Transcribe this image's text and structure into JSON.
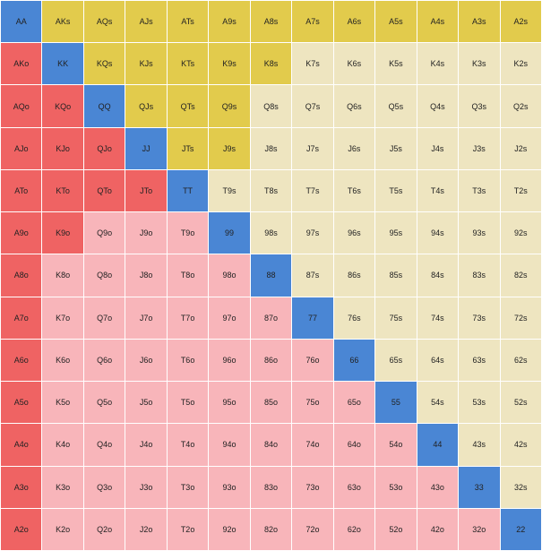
{
  "rows": [
    [
      "AA",
      "AKs",
      "AQs",
      "AJs",
      "ATs",
      "A9s",
      "A8s",
      "A7s",
      "A6s",
      "A5s",
      "A4s",
      "A3s",
      "A2s"
    ],
    [
      "AKo",
      "KK",
      "KQs",
      "KJs",
      "KTs",
      "K9s",
      "K8s",
      "K7s",
      "K6s",
      "K5s",
      "K4s",
      "K3s",
      "K2s"
    ],
    [
      "AQo",
      "KQo",
      "QQ",
      "QJs",
      "QTs",
      "Q9s",
      "Q8s",
      "Q7s",
      "Q6s",
      "Q5s",
      "Q4s",
      "Q3s",
      "Q2s"
    ],
    [
      "AJo",
      "KJo",
      "QJo",
      "JJ",
      "JTs",
      "J9s",
      "J8s",
      "J7s",
      "J6s",
      "J5s",
      "J4s",
      "J3s",
      "J2s"
    ],
    [
      "ATo",
      "KTo",
      "QTo",
      "JTo",
      "TT",
      "T9s",
      "T8s",
      "T7s",
      "T6s",
      "T5s",
      "T4s",
      "T3s",
      "T2s"
    ],
    [
      "A9o",
      "K9o",
      "Q9o",
      "J9o",
      "T9o",
      "99",
      "98s",
      "97s",
      "96s",
      "95s",
      "94s",
      "93s",
      "92s"
    ],
    [
      "A8o",
      "K8o",
      "Q8o",
      "J8o",
      "T8o",
      "98o",
      "88",
      "87s",
      "86s",
      "85s",
      "84s",
      "83s",
      "82s"
    ],
    [
      "A7o",
      "K7o",
      "Q7o",
      "J7o",
      "T7o",
      "97o",
      "87o",
      "77",
      "76s",
      "75s",
      "74s",
      "73s",
      "72s"
    ],
    [
      "A6o",
      "K6o",
      "Q6o",
      "J6o",
      "T6o",
      "96o",
      "86o",
      "76o",
      "66",
      "65s",
      "64s",
      "63s",
      "62s"
    ],
    [
      "A5o",
      "K5o",
      "Q5o",
      "J5o",
      "T5o",
      "95o",
      "85o",
      "75o",
      "65o",
      "55",
      "54s",
      "53s",
      "52s"
    ],
    [
      "A4o",
      "K4o",
      "Q4o",
      "J4o",
      "T4o",
      "94o",
      "84o",
      "74o",
      "64o",
      "54o",
      "44",
      "43s",
      "42s"
    ],
    [
      "A3o",
      "K3o",
      "Q3o",
      "J3o",
      "T3o",
      "93o",
      "83o",
      "73o",
      "63o",
      "53o",
      "43o",
      "33",
      "32s"
    ],
    [
      "A2o",
      "K2o",
      "Q2o",
      "J2o",
      "T2o",
      "92o",
      "82o",
      "72o",
      "62o",
      "52o",
      "42o",
      "32o",
      "22"
    ]
  ],
  "selected": [
    "AA",
    "KK",
    "QQ",
    "JJ",
    "TT",
    "99",
    "88",
    "77",
    "66",
    "55",
    "44",
    "33",
    "22",
    "AKs",
    "AQs",
    "AJs",
    "ATs",
    "A9s",
    "A8s",
    "A7s",
    "A6s",
    "A5s",
    "A4s",
    "A3s",
    "A2s",
    "KQs",
    "KJs",
    "KTs",
    "K9s",
    "K8s",
    "QJs",
    "QTs",
    "Q9s",
    "JTs",
    "J9s",
    "AKo",
    "AQo",
    "AJo",
    "ATo",
    "A9o",
    "A8o",
    "A7o",
    "A6o",
    "A5o",
    "A4o",
    "A3o",
    "A2o",
    "KQo",
    "KJo",
    "KTo",
    "K9o",
    "QJo",
    "QTo",
    "JTo"
  ],
  "colors": {
    "pair": "#4a86d4",
    "suited_selected": "#e2cb4c",
    "suited": "#eee5c0",
    "offsuit_selected": "#ef6363",
    "offsuit": "#f8b5ba"
  }
}
